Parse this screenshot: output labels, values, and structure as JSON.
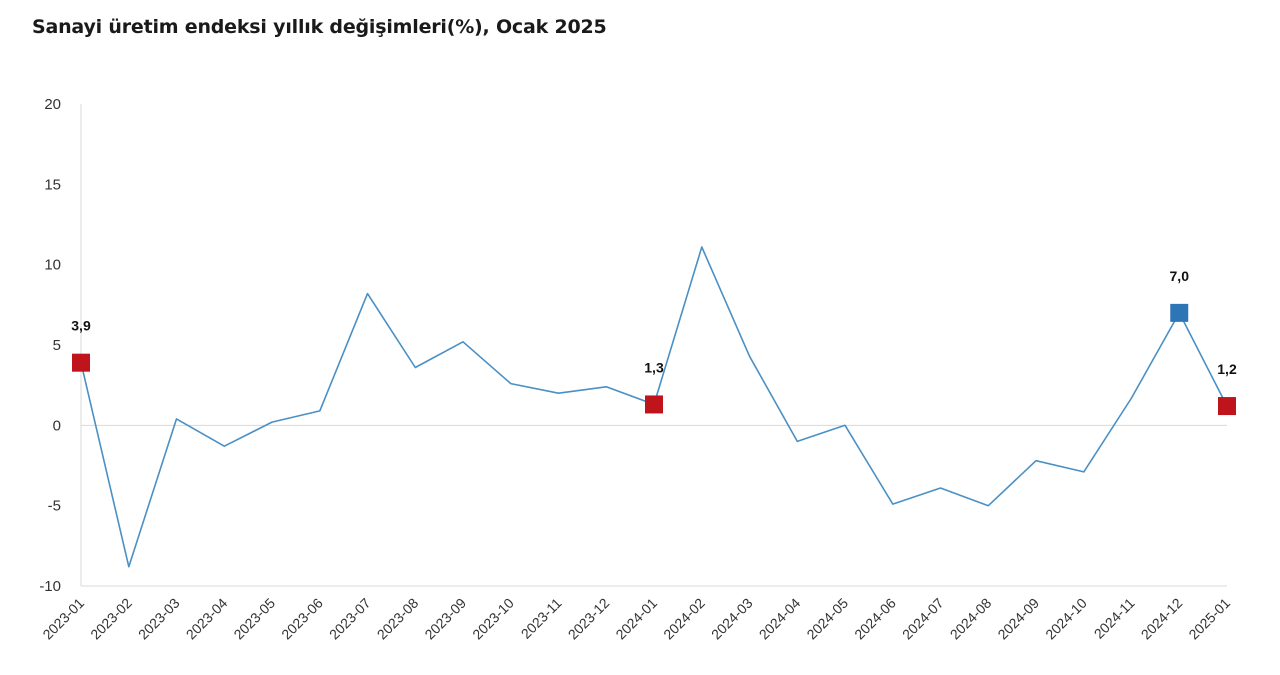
{
  "chart_data": {
    "type": "line",
    "title": "Sanayi üretim endeksi yıllık değişimleri(%), Ocak 2025",
    "xlabel": "",
    "ylabel": "",
    "ylim": [
      -10,
      20
    ],
    "yticks": [
      "20",
      "15",
      "10",
      "5",
      "0",
      "-5",
      "-10"
    ],
    "grid": false,
    "categories": [
      "2023-01",
      "2023-02",
      "2023-03",
      "2023-04",
      "2023-05",
      "2023-06",
      "2023-07",
      "2023-08",
      "2023-09",
      "2023-10",
      "2023-11",
      "2023-12",
      "2024-01",
      "2024-02",
      "2024-03",
      "2024-04",
      "2024-05",
      "2024-06",
      "2024-07",
      "2024-08",
      "2024-09",
      "2024-10",
      "2024-11",
      "2024-12",
      "2025-01"
    ],
    "series": [
      {
        "values": [
          3.9,
          -8.8,
          0.4,
          -1.3,
          0.2,
          0.9,
          8.2,
          3.6,
          5.2,
          2.6,
          2.0,
          2.4,
          1.3,
          11.1,
          4.3,
          -1.0,
          0.0,
          -4.9,
          -3.9,
          -5.0,
          -2.2,
          -2.9,
          1.7,
          7.0,
          1.2
        ],
        "color": "#4a90c4"
      }
    ],
    "highlighted_points": [
      {
        "category": "2023-01",
        "value": 3.9,
        "label": "3,9",
        "color": "#c0141c"
      },
      {
        "category": "2024-01",
        "value": 1.3,
        "label": "1,3",
        "color": "#c0141c"
      },
      {
        "category": "2024-12",
        "value": 7.0,
        "label": "7,0",
        "color": "#2e75b6"
      },
      {
        "category": "2025-01",
        "value": 1.2,
        "label": "1,2",
        "color": "#c0141c"
      }
    ]
  }
}
